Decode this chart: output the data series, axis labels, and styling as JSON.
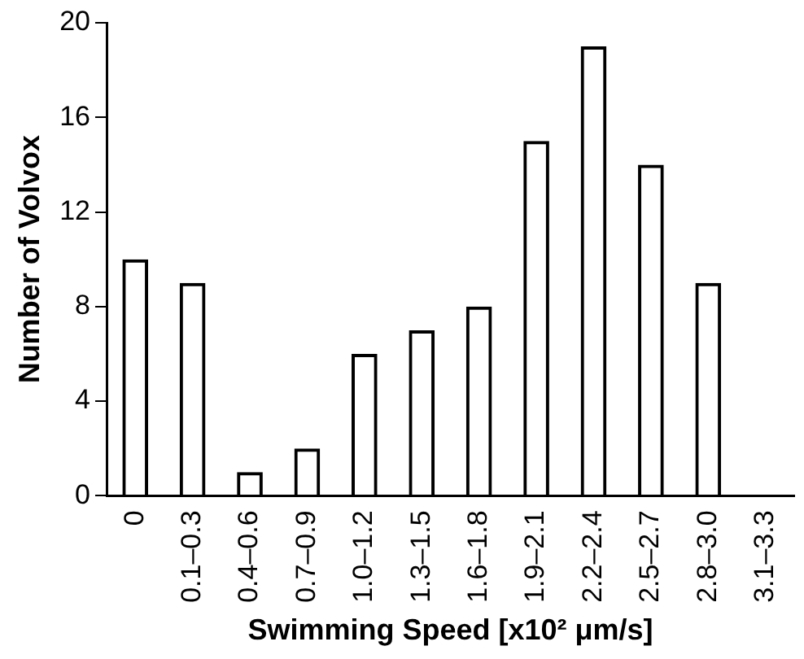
{
  "chart_data": {
    "type": "bar",
    "xlabel": "Swimming Speed [x10² μm/s]",
    "ylabel": "Number of Volvox",
    "categories": [
      "0",
      "0.1–0.3",
      "0.4–0.6",
      "0.7–0.9",
      "1.0–1.2",
      "1.3–1.5",
      "1.6–1.8",
      "1.9–2.1",
      "2.2–2.4",
      "2.5–2.7",
      "2.8–3.0",
      "3.1–3.3"
    ],
    "values": [
      10,
      9,
      1,
      2,
      6,
      7,
      8,
      15,
      19,
      14,
      9,
      0
    ],
    "color": "#000000",
    "ylim": [
      0,
      20
    ],
    "yticks": [
      0,
      4,
      8,
      12,
      16,
      20
    ],
    "grid": false,
    "legend": false
  }
}
